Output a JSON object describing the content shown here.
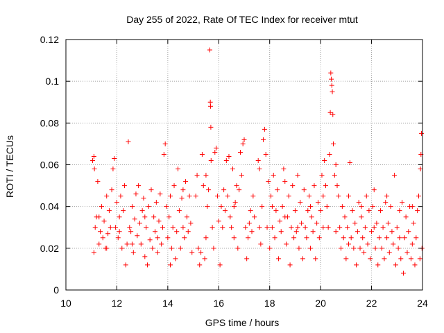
{
  "chart_data": {
    "type": "scatter",
    "title": "Day 255 of 2022, Rate Of TEC Index for receiver mtut",
    "xlabel": "GPS time / hours",
    "ylabel": "ROTI / TECUs",
    "xlim": [
      10,
      24
    ],
    "ylim": [
      0,
      0.12
    ],
    "xticks": [
      10,
      12,
      14,
      16,
      18,
      20,
      22,
      24
    ],
    "xtick_labels": [
      "10",
      "12",
      "14",
      "16",
      "18",
      "20",
      "22",
      "24"
    ],
    "yticks": [
      0,
      0.02,
      0.04,
      0.06,
      0.08,
      0.1,
      0.12
    ],
    "ytick_labels": [
      "0",
      "0.02",
      "0.04",
      "0.06",
      "0.08",
      "0.1",
      "0.12"
    ],
    "grid": true,
    "legend": "none",
    "marker": "+",
    "marker_color": "#ff0000",
    "points": [
      [
        11.05,
        0.062
      ],
      [
        11.1,
        0.064
      ],
      [
        11.12,
        0.058
      ],
      [
        11.15,
        0.03
      ],
      [
        11.2,
        0.035
      ],
      [
        11.25,
        0.052
      ],
      [
        11.3,
        0.022
      ],
      [
        11.35,
        0.028
      ],
      [
        11.4,
        0.04
      ],
      [
        11.45,
        0.025
      ],
      [
        11.5,
        0.033
      ],
      [
        11.55,
        0.02
      ],
      [
        11.6,
        0.045
      ],
      [
        11.65,
        0.027
      ],
      [
        11.7,
        0.038
      ],
      [
        11.75,
        0.03
      ],
      [
        11.8,
        0.048
      ],
      [
        11.85,
        0.058
      ],
      [
        11.9,
        0.063
      ],
      [
        11.95,
        0.03
      ],
      [
        12.0,
        0.042
      ],
      [
        12.05,
        0.025
      ],
      [
        12.1,
        0.035
      ],
      [
        12.15,
        0.045
      ],
      [
        12.2,
        0.02
      ],
      [
        12.25,
        0.038
      ],
      [
        12.3,
        0.05
      ],
      [
        12.35,
        0.012
      ],
      [
        12.4,
        0.022
      ],
      [
        12.45,
        0.071
      ],
      [
        12.5,
        0.03
      ],
      [
        12.55,
        0.028
      ],
      [
        12.6,
        0.04
      ],
      [
        12.65,
        0.018
      ],
      [
        12.7,
        0.034
      ],
      [
        12.75,
        0.046
      ],
      [
        12.8,
        0.026
      ],
      [
        12.85,
        0.05
      ],
      [
        12.9,
        0.032
      ],
      [
        12.95,
        0.022
      ],
      [
        13.0,
        0.038
      ],
      [
        13.05,
        0.044
      ],
      [
        13.1,
        0.016
      ],
      [
        13.15,
        0.03
      ],
      [
        13.2,
        0.012
      ],
      [
        13.25,
        0.04
      ],
      [
        13.3,
        0.024
      ],
      [
        13.35,
        0.048
      ],
      [
        13.4,
        0.02
      ],
      [
        13.45,
        0.035
      ],
      [
        13.5,
        0.028
      ],
      [
        13.55,
        0.042
      ],
      [
        13.6,
        0.018
      ],
      [
        13.65,
        0.033
      ],
      [
        13.7,
        0.046
      ],
      [
        13.75,
        0.022
      ],
      [
        13.8,
        0.03
      ],
      [
        13.85,
        0.065
      ],
      [
        13.9,
        0.07
      ],
      [
        13.95,
        0.04
      ],
      [
        14.0,
        0.025
      ],
      [
        14.05,
        0.035
      ],
      [
        14.1,
        0.045
      ],
      [
        14.15,
        0.02
      ],
      [
        14.2,
        0.03
      ],
      [
        14.25,
        0.05
      ],
      [
        14.3,
        0.015
      ],
      [
        14.35,
        0.028
      ],
      [
        14.4,
        0.058
      ],
      [
        14.45,
        0.038
      ],
      [
        14.5,
        0.02
      ],
      [
        14.55,
        0.044
      ],
      [
        14.6,
        0.03
      ],
      [
        14.65,
        0.025
      ],
      [
        14.7,
        0.052
      ],
      [
        14.75,
        0.035
      ],
      [
        14.8,
        0.028
      ],
      [
        14.85,
        0.045
      ],
      [
        14.9,
        0.032
      ],
      [
        14.95,
        0.018
      ],
      [
        15.1,
        0.045
      ],
      [
        15.15,
        0.055
      ],
      [
        15.2,
        0.02
      ],
      [
        15.25,
        0.012
      ],
      [
        15.3,
        0.018
      ],
      [
        15.35,
        0.065
      ],
      [
        15.4,
        0.05
      ],
      [
        15.45,
        0.015
      ],
      [
        15.5,
        0.055
      ],
      [
        15.55,
        0.04
      ],
      [
        15.6,
        0.048
      ],
      [
        15.65,
        0.115
      ],
      [
        15.67,
        0.09
      ],
      [
        15.68,
        0.088
      ],
      [
        15.69,
        0.078
      ],
      [
        15.7,
        0.062
      ],
      [
        15.75,
        0.03
      ],
      [
        15.8,
        0.02
      ],
      [
        15.85,
        0.066
      ],
      [
        15.9,
        0.068
      ],
      [
        15.95,
        0.045
      ],
      [
        16.0,
        0.033
      ],
      [
        16.05,
        0.012
      ],
      [
        16.1,
        0.04
      ],
      [
        16.15,
        0.03
      ],
      [
        16.2,
        0.048
      ],
      [
        16.25,
        0.038
      ],
      [
        16.3,
        0.062
      ],
      [
        16.35,
        0.045
      ],
      [
        16.4,
        0.064
      ],
      [
        16.45,
        0.035
      ],
      [
        16.5,
        0.03
      ],
      [
        16.55,
        0.058
      ],
      [
        16.6,
        0.025
      ],
      [
        16.65,
        0.042
      ],
      [
        16.7,
        0.05
      ],
      [
        16.75,
        0.02
      ],
      [
        16.8,
        0.048
      ],
      [
        16.85,
        0.066
      ],
      [
        16.9,
        0.055
      ],
      [
        16.95,
        0.07
      ],
      [
        17.0,
        0.072
      ],
      [
        17.05,
        0.03
      ],
      [
        17.1,
        0.015
      ],
      [
        17.15,
        0.025
      ],
      [
        17.2,
        0.032
      ],
      [
        17.25,
        0.038
      ],
      [
        17.3,
        0.028
      ],
      [
        17.35,
        0.045
      ],
      [
        17.4,
        0.035
      ],
      [
        17.55,
        0.062
      ],
      [
        17.6,
        0.058
      ],
      [
        17.65,
        0.022
      ],
      [
        17.7,
        0.04
      ],
      [
        17.75,
        0.072
      ],
      [
        17.8,
        0.077
      ],
      [
        17.85,
        0.065
      ],
      [
        17.9,
        0.03
      ],
      [
        17.95,
        0.052
      ],
      [
        18.0,
        0.02
      ],
      [
        18.05,
        0.045
      ],
      [
        18.1,
        0.03
      ],
      [
        18.15,
        0.055
      ],
      [
        18.2,
        0.025
      ],
      [
        18.25,
        0.038
      ],
      [
        18.3,
        0.048
      ],
      [
        18.35,
        0.015
      ],
      [
        18.4,
        0.033
      ],
      [
        18.45,
        0.028
      ],
      [
        18.5,
        0.04
      ],
      [
        18.55,
        0.058
      ],
      [
        18.6,
        0.052
      ],
      [
        18.65,
        0.022
      ],
      [
        18.7,
        0.035
      ],
      [
        18.75,
        0.045
      ],
      [
        18.8,
        0.012
      ],
      [
        18.85,
        0.03
      ],
      [
        18.9,
        0.05
      ],
      [
        18.95,
        0.025
      ],
      [
        19.0,
        0.038
      ],
      [
        19.05,
        0.028
      ],
      [
        19.1,
        0.055
      ],
      [
        19.15,
        0.02
      ],
      [
        19.2,
        0.042
      ],
      [
        19.25,
        0.032
      ],
      [
        19.3,
        0.015
      ],
      [
        19.35,
        0.048
      ],
      [
        19.4,
        0.03
      ],
      [
        19.45,
        0.025
      ],
      [
        19.5,
        0.038
      ],
      [
        19.55,
        0.045
      ],
      [
        19.6,
        0.02
      ],
      [
        19.65,
        0.035
      ],
      [
        19.7,
        0.028
      ],
      [
        19.75,
        0.05
      ],
      [
        19.8,
        0.015
      ],
      [
        19.85,
        0.032
      ],
      [
        19.9,
        0.042
      ],
      [
        19.95,
        0.025
      ],
      [
        20.0,
        0.038
      ],
      [
        20.05,
        0.055
      ],
      [
        20.1,
        0.03
      ],
      [
        20.15,
        0.062
      ],
      [
        20.2,
        0.05
      ],
      [
        20.25,
        0.04
      ],
      [
        20.3,
        0.03
      ],
      [
        20.35,
        0.065
      ],
      [
        20.38,
        0.085
      ],
      [
        20.4,
        0.104
      ],
      [
        20.42,
        0.101
      ],
      [
        20.44,
        0.098
      ],
      [
        20.46,
        0.095
      ],
      [
        20.48,
        0.084
      ],
      [
        20.5,
        0.07
      ],
      [
        20.55,
        0.055
      ],
      [
        20.6,
        0.06
      ],
      [
        20.65,
        0.05
      ],
      [
        20.7,
        0.045
      ],
      [
        20.75,
        0.03
      ],
      [
        20.8,
        0.02
      ],
      [
        20.85,
        0.04
      ],
      [
        20.9,
        0.025
      ],
      [
        20.95,
        0.035
      ],
      [
        21.0,
        0.015
      ],
      [
        21.05,
        0.03
      ],
      [
        21.1,
        0.045
      ],
      [
        21.15,
        0.061
      ],
      [
        21.2,
        0.025
      ],
      [
        21.25,
        0.038
      ],
      [
        21.3,
        0.02
      ],
      [
        21.35,
        0.032
      ],
      [
        21.4,
        0.012
      ],
      [
        21.45,
        0.028
      ],
      [
        21.5,
        0.042
      ],
      [
        21.55,
        0.02
      ],
      [
        21.6,
        0.035
      ],
      [
        21.65,
        0.025
      ],
      [
        21.7,
        0.018
      ],
      [
        21.75,
        0.03
      ],
      [
        21.8,
        0.045
      ],
      [
        21.85,
        0.022
      ],
      [
        21.9,
        0.038
      ],
      [
        21.95,
        0.015
      ],
      [
        22.0,
        0.028
      ],
      [
        22.05,
        0.04
      ],
      [
        22.1,
        0.048
      ],
      [
        22.15,
        0.02
      ],
      [
        22.2,
        0.032
      ],
      [
        22.25,
        0.012
      ],
      [
        22.3,
        0.025
      ],
      [
        22.35,
        0.038
      ],
      [
        22.4,
        0.02
      ],
      [
        22.45,
        0.03
      ],
      [
        22.5,
        0.015
      ],
      [
        22.55,
        0.042
      ],
      [
        22.6,
        0.025
      ],
      [
        22.65,
        0.032
      ],
      [
        22.7,
        0.018
      ],
      [
        22.75,
        0.04
      ],
      [
        22.8,
        0.028
      ],
      [
        22.85,
        0.022
      ],
      [
        22.9,
        0.055
      ],
      [
        22.95,
        0.012
      ],
      [
        23.0,
        0.03
      ],
      [
        23.05,
        0.02
      ],
      [
        23.1,
        0.038
      ],
      [
        23.15,
        0.015
      ],
      [
        23.2,
        0.042
      ],
      [
        23.25,
        0.008
      ],
      [
        23.3,
        0.025
      ],
      [
        23.35,
        0.035
      ],
      [
        23.4,
        0.018
      ],
      [
        23.45,
        0.028
      ],
      [
        23.5,
        0.04
      ],
      [
        23.55,
        0.015
      ],
      [
        23.6,
        0.022
      ],
      [
        23.65,
        0.032
      ],
      [
        23.7,
        0.012
      ],
      [
        23.75,
        0.025
      ],
      [
        23.8,
        0.038
      ],
      [
        23.85,
        0.045
      ],
      [
        23.9,
        0.015
      ],
      [
        23.92,
        0.058
      ],
      [
        23.94,
        0.065
      ],
      [
        23.96,
        0.075
      ],
      [
        23.98,
        0.02
      ],
      [
        11.1,
        0.018
      ],
      [
        11.3,
        0.035
      ],
      [
        11.6,
        0.02
      ],
      [
        12.1,
        0.028
      ],
      [
        12.6,
        0.022
      ],
      [
        13.1,
        0.035
      ],
      [
        13.6,
        0.025
      ],
      [
        14.1,
        0.012
      ],
      [
        14.6,
        0.048
      ],
      [
        15.5,
        0.025
      ],
      [
        16.6,
        0.04
      ],
      [
        17.6,
        0.03
      ],
      [
        18.1,
        0.04
      ],
      [
        18.6,
        0.035
      ],
      [
        19.1,
        0.03
      ],
      [
        19.6,
        0.04
      ],
      [
        20.1,
        0.045
      ],
      [
        20.6,
        0.028
      ],
      [
        21.1,
        0.022
      ],
      [
        21.6,
        0.04
      ],
      [
        22.1,
        0.03
      ],
      [
        22.6,
        0.045
      ],
      [
        23.1,
        0.025
      ],
      [
        23.6,
        0.04
      ]
    ]
  }
}
